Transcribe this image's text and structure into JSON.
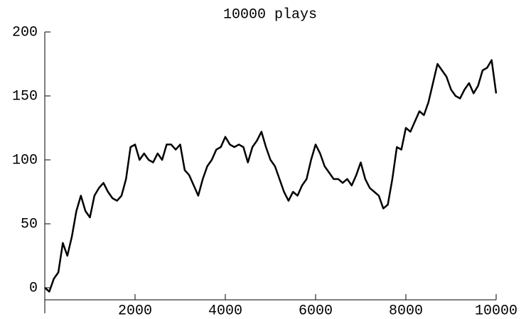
{
  "chart_data": {
    "type": "line",
    "title": "10000 plays",
    "x": [
      0,
      100,
      200,
      300,
      400,
      500,
      600,
      700,
      800,
      900,
      1000,
      1100,
      1200,
      1300,
      1400,
      1500,
      1600,
      1700,
      1800,
      1900,
      2000,
      2100,
      2200,
      2300,
      2400,
      2500,
      2600,
      2700,
      2800,
      2900,
      3000,
      3100,
      3200,
      3300,
      3400,
      3500,
      3600,
      3700,
      3800,
      3900,
      4000,
      4100,
      4200,
      4300,
      4400,
      4500,
      4600,
      4700,
      4800,
      4900,
      5000,
      5100,
      5200,
      5300,
      5400,
      5500,
      5600,
      5700,
      5800,
      5900,
      6000,
      6100,
      6200,
      6300,
      6400,
      6500,
      6600,
      6700,
      6800,
      6900,
      7000,
      7100,
      7200,
      7300,
      7400,
      7500,
      7600,
      7700,
      7800,
      7900,
      8000,
      8100,
      8200,
      8300,
      8400,
      8500,
      8600,
      8700,
      8800,
      8900,
      9000,
      9100,
      9200,
      9300,
      9400,
      9500,
      9600,
      9700,
      9800,
      9900,
      10000
    ],
    "values": [
      0,
      -3,
      7,
      12,
      35,
      25,
      40,
      60,
      72,
      60,
      55,
      72,
      78,
      82,
      75,
      70,
      68,
      72,
      85,
      110,
      112,
      100,
      105,
      100,
      98,
      105,
      100,
      112,
      112,
      108,
      112,
      92,
      88,
      80,
      72,
      85,
      95,
      100,
      108,
      110,
      118,
      112,
      110,
      112,
      110,
      98,
      110,
      115,
      122,
      110,
      100,
      95,
      85,
      75,
      68,
      75,
      72,
      80,
      85,
      100,
      112,
      105,
      95,
      90,
      85,
      85,
      82,
      85,
      80,
      88,
      98,
      85,
      78,
      75,
      72,
      62,
      65,
      85,
      110,
      108,
      125,
      122,
      130,
      138,
      135,
      145,
      160,
      175,
      170,
      165,
      155,
      150,
      148,
      155,
      160,
      152,
      158,
      170,
      172,
      178,
      152
    ],
    "color": "#000000",
    "xlim": [
      0,
      10000
    ],
    "xticks": [
      2000,
      4000,
      6000,
      8000,
      10000
    ],
    "ylim": [
      -20,
      200
    ],
    "yticks": [
      0,
      50,
      100,
      150,
      200
    ]
  }
}
